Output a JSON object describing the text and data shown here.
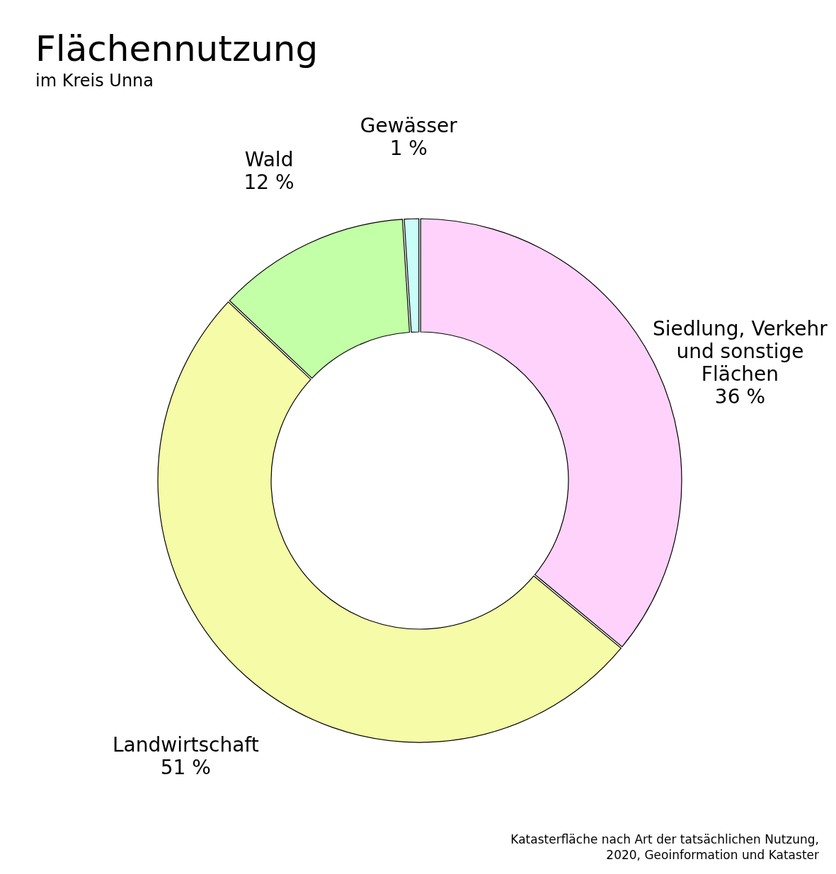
{
  "chart_data": {
    "type": "donut",
    "title": "Flächennutzung",
    "subtitle": "im Kreis Unna",
    "categories": [
      "Siedlung, Verkehr und sonstige Flächen",
      "Landwirtschaft",
      "Wald",
      "Gewässer"
    ],
    "values": [
      36,
      51,
      12,
      1
    ],
    "value_labels": [
      "36 %",
      "51 %",
      "12 %",
      "1 %"
    ],
    "colors": [
      "#ffd2fb",
      "#f5fba6",
      "#c2ffa6",
      "#c9fdf8"
    ],
    "legend": false,
    "annotations": [
      "Katasterfläche nach Art der tatsächlichen Nutzung, 2020, Geoinformation und Kataster"
    ]
  }
}
